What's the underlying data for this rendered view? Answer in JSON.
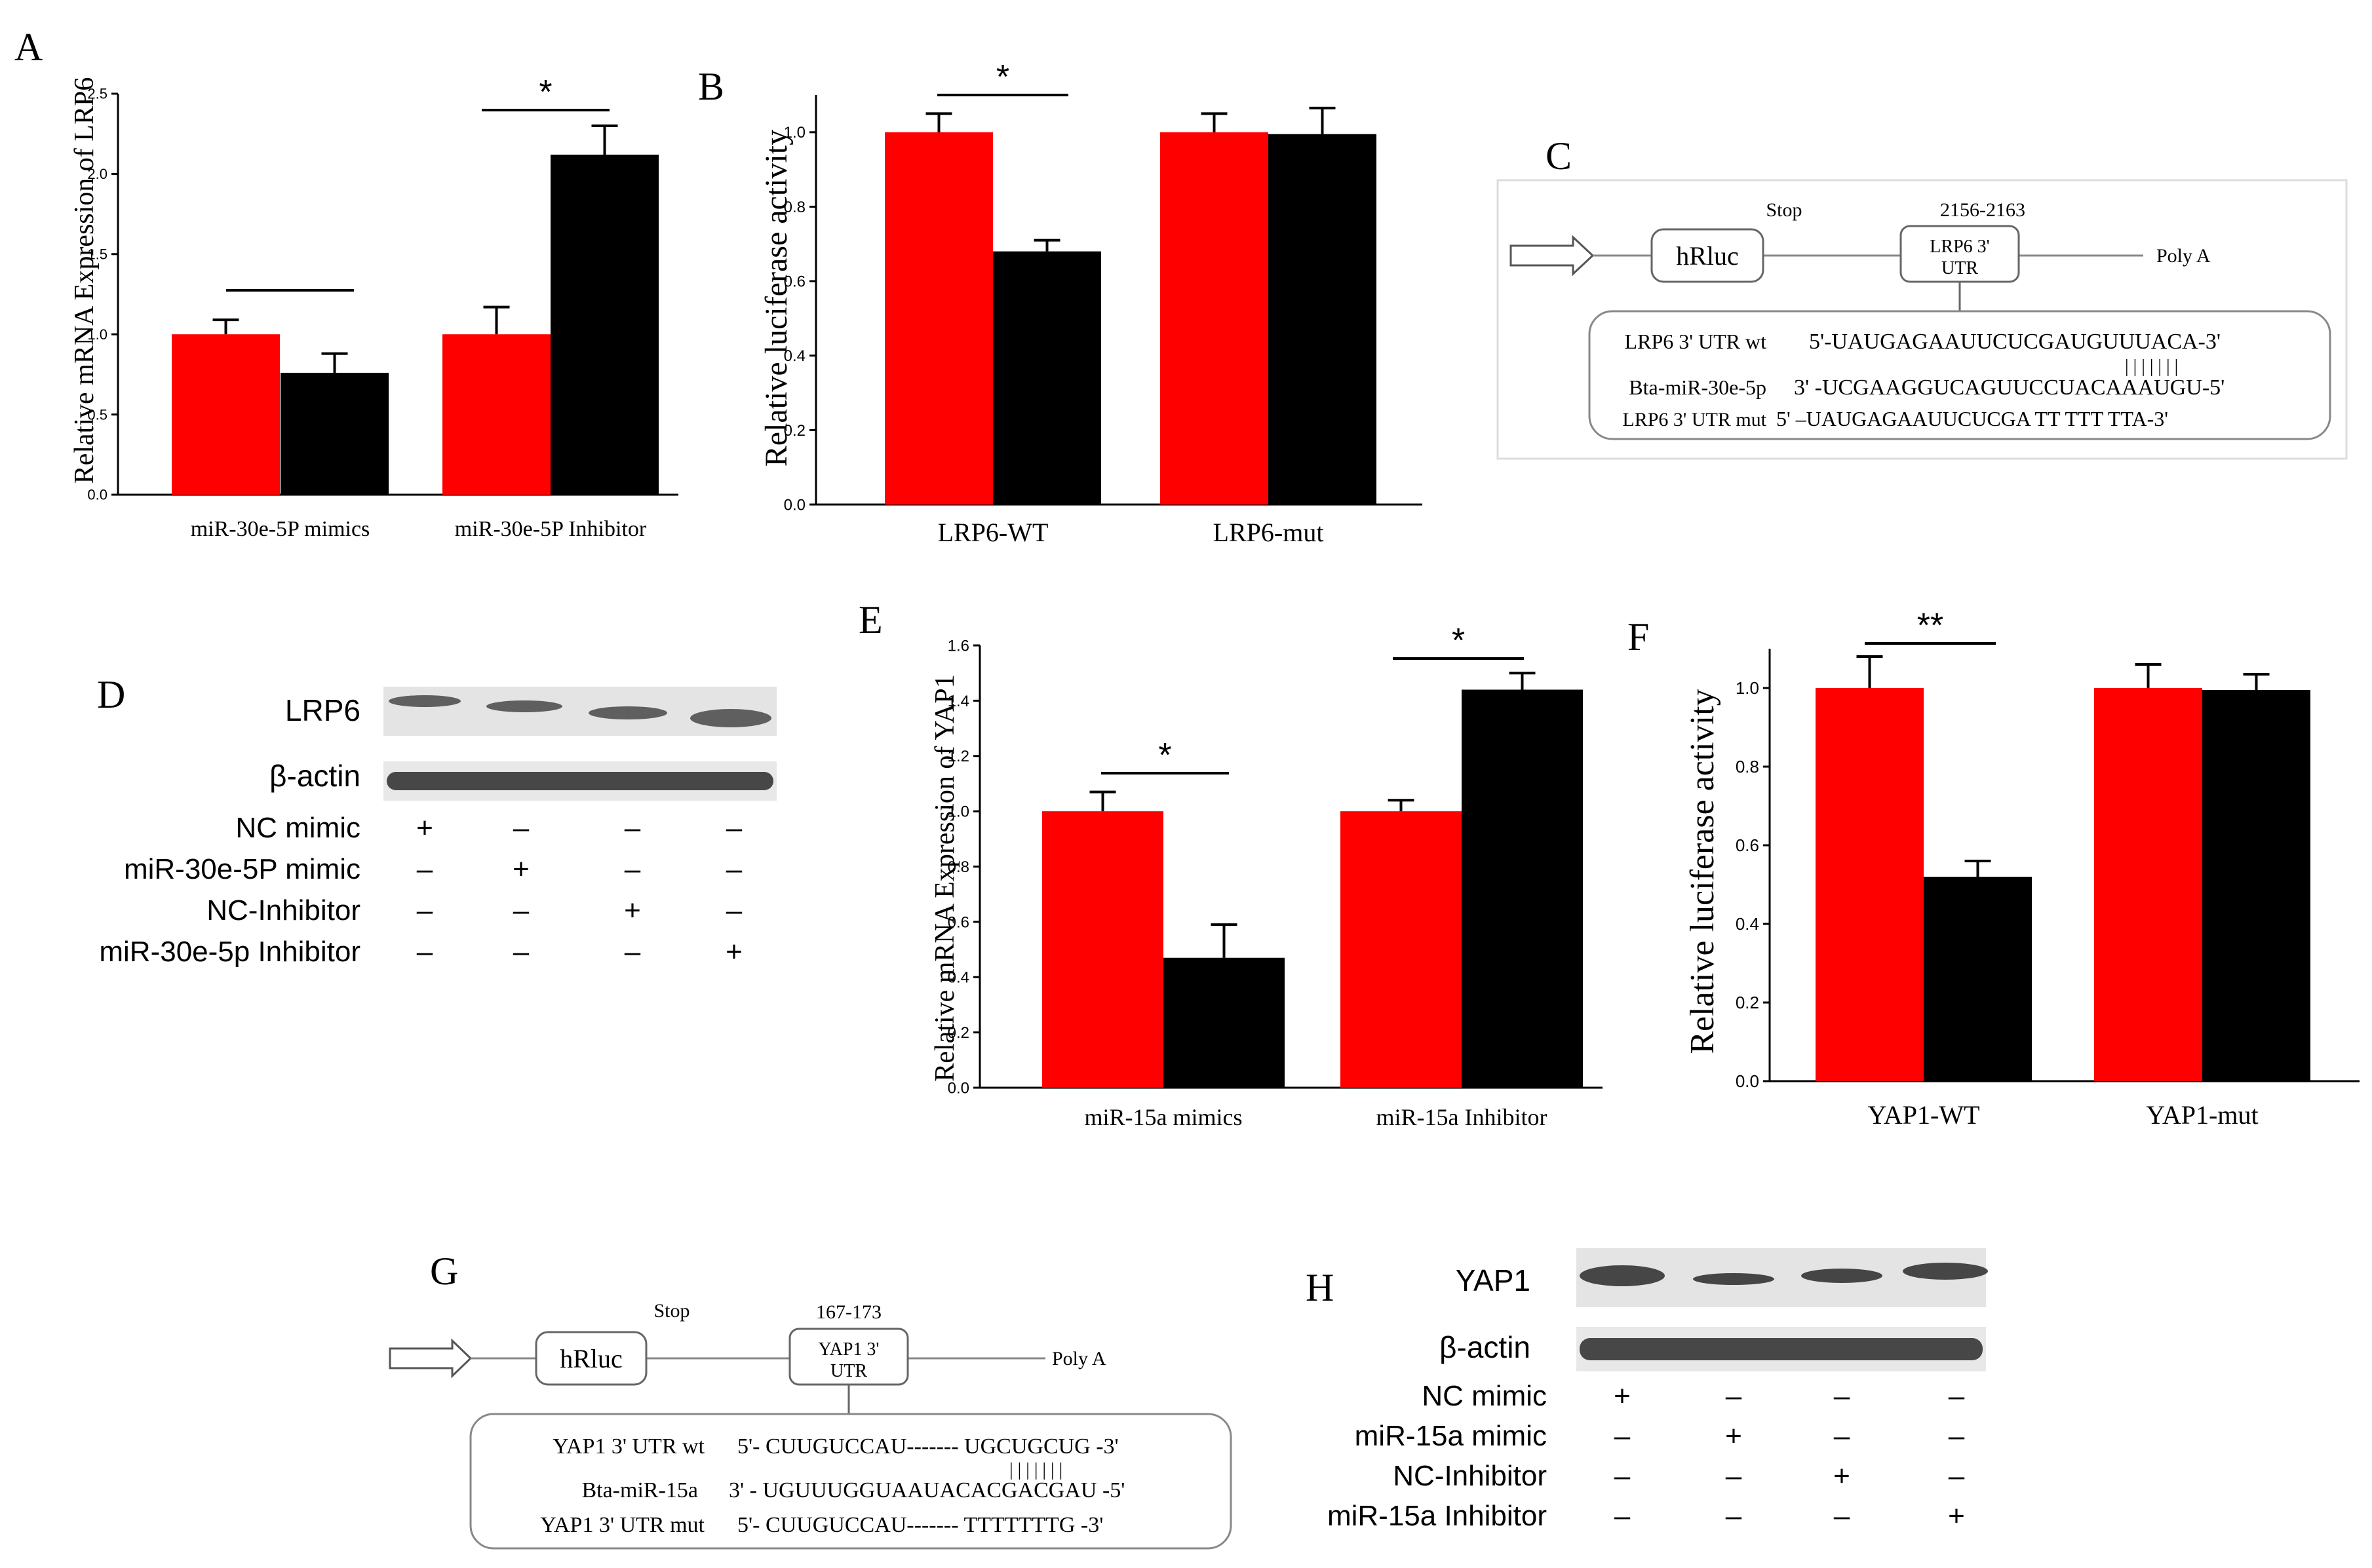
{
  "panels": {
    "A": {
      "letter": "A"
    },
    "B": {
      "letter": "B"
    },
    "C": {
      "letter": "C"
    },
    "D": {
      "letter": "D"
    },
    "E": {
      "letter": "E"
    },
    "F": {
      "letter": "F"
    },
    "G": {
      "letter": "G"
    },
    "H": {
      "letter": "H"
    }
  },
  "colors": {
    "red": "#ff0000",
    "black": "#000000",
    "frame": "#999999",
    "blot": "#e4e4e4",
    "band": "#333333"
  },
  "chart_data": [
    {
      "id": "A",
      "type": "bar",
      "title": "",
      "xlabel": "",
      "ylabel": "Relative mRNA Expression of LRP6",
      "categories": [
        "miR-30e-5P mimics",
        "miR-30e-5P Inhibitor"
      ],
      "series": [
        {
          "name": "control",
          "color": "#ff0000",
          "values": [
            1.0,
            1.0
          ],
          "errors": [
            0.09,
            0.17
          ]
        },
        {
          "name": "treatment",
          "color": "#000000",
          "values": [
            0.76,
            2.12
          ],
          "errors": [
            0.12,
            0.18
          ]
        }
      ],
      "ylim": [
        0,
        2.5
      ],
      "yticks": [
        "0.0",
        "0.5",
        "1.0",
        "1.5",
        "2.0",
        "2.5"
      ],
      "annotations": [
        {
          "category": 0,
          "label": ""
        },
        {
          "category": 1,
          "label": "*"
        }
      ]
    },
    {
      "id": "B",
      "type": "bar",
      "title": "",
      "xlabel": "",
      "ylabel": "Relative luciferase activity",
      "categories": [
        "LRP6-WT",
        "LRP6-mut"
      ],
      "series": [
        {
          "name": "control",
          "color": "#ff0000",
          "values": [
            1.0,
            1.0
          ],
          "errors": [
            0.05,
            0.05
          ]
        },
        {
          "name": "treatment",
          "color": "#000000",
          "values": [
            0.68,
            0.995
          ],
          "errors": [
            0.03,
            0.07
          ]
        }
      ],
      "ylim": [
        0,
        1.1
      ],
      "yticks": [
        "0.0",
        "0.2",
        "0.4",
        "0.6",
        "0.8",
        "1.0"
      ],
      "annotations": [
        {
          "category": 0,
          "label": "*"
        }
      ]
    },
    {
      "id": "E",
      "type": "bar",
      "title": "",
      "xlabel": "",
      "ylabel": "Relative mRNA Expression of YAP1",
      "categories": [
        "miR-15a mimics",
        "miR-15a Inhibitor"
      ],
      "series": [
        {
          "name": "control",
          "color": "#ff0000",
          "values": [
            1.0,
            1.0
          ],
          "errors": [
            0.07,
            0.04
          ]
        },
        {
          "name": "treatment",
          "color": "#000000",
          "values": [
            0.47,
            1.44
          ],
          "errors": [
            0.12,
            0.06
          ]
        }
      ],
      "ylim": [
        0,
        1.6
      ],
      "yticks": [
        "0.0",
        "0.2",
        "0.4",
        "0.6",
        "0.8",
        "1.0",
        "1.2",
        "1.4",
        "1.6"
      ],
      "annotations": [
        {
          "category": 0,
          "label": "*"
        },
        {
          "category": 1,
          "label": "*"
        }
      ]
    },
    {
      "id": "F",
      "type": "bar",
      "title": "",
      "xlabel": "",
      "ylabel": "Relative luciferase activity",
      "categories": [
        "YAP1-WT",
        "YAP1-mut"
      ],
      "series": [
        {
          "name": "control",
          "color": "#ff0000",
          "values": [
            1.0,
            1.0
          ],
          "errors": [
            0.08,
            0.06
          ]
        },
        {
          "name": "treatment",
          "color": "#000000",
          "values": [
            0.52,
            0.995
          ],
          "errors": [
            0.04,
            0.04
          ]
        }
      ],
      "ylim": [
        0,
        1.1
      ],
      "yticks": [
        "0.0",
        "0.2",
        "0.4",
        "0.6",
        "0.8",
        "1.0"
      ],
      "annotations": [
        {
          "category": 0,
          "label": "**"
        }
      ]
    }
  ],
  "construct_C": {
    "stop": "Stop",
    "position": "2156-2163",
    "hrluc": "hRluc",
    "utr_line1": "LRP6 3'",
    "utr_line2": "UTR",
    "polya": "Poly A",
    "rows": [
      {
        "label": "LRP6  3' UTR wt",
        "seq": "5'-UAUGAGAAUUCUCGAUGUUUACA-3'"
      },
      {
        "label": "",
        "seq": "| | | | | | |"
      },
      {
        "label": "Bta-miR-30e-5p",
        "seq": "3'  -UCGAAGGUCAGUUCCUACAAAUGU-5'"
      },
      {
        "label": "LRP6  3' UTR mut",
        "seq": "5' –UAUGAGAAUUCUCGA TT TTT TTA-3'"
      }
    ]
  },
  "construct_G": {
    "stop": "Stop",
    "position": "167-173",
    "hrluc": "hRluc",
    "utr_line1": "YAP1 3'",
    "utr_line2": "UTR",
    "polya": "Poly A",
    "rows": [
      {
        "label": "YAP1  3' UTR wt",
        "seq": "5'- CUUGUCCAU------- UGCUGCUG -3'"
      },
      {
        "label": "",
        "seq": "| | | | | | |"
      },
      {
        "label": "Bta-miR-15a",
        "seq": "3'  - UGUUUGGUAAUACACGACGAU -5'"
      },
      {
        "label": "YAP1  3' UTR mut",
        "seq": "5'- CUUGUCCAU-------  TTTTTTTG -3'"
      }
    ]
  },
  "blot_D": {
    "bands": [
      "LRP6",
      "β-actin"
    ],
    "conditions": [
      {
        "label": "NC mimic",
        "marks": [
          "+",
          "–",
          "–",
          "–"
        ]
      },
      {
        "label": "miR-30e-5P mimic",
        "marks": [
          "–",
          "+",
          "–",
          "–"
        ]
      },
      {
        "label": "NC-Inhibitor",
        "marks": [
          "–",
          "–",
          "+",
          "–"
        ]
      },
      {
        "label": "miR-30e-5p Inhibitor",
        "marks": [
          "–",
          "–",
          "–",
          "+"
        ]
      }
    ]
  },
  "blot_H": {
    "bands": [
      "YAP1",
      "β-actin"
    ],
    "conditions": [
      {
        "label": "NC mimic",
        "marks": [
          "+",
          "–",
          "–",
          "–"
        ]
      },
      {
        "label": "miR-15a mimic",
        "marks": [
          "–",
          "+",
          "–",
          "–"
        ]
      },
      {
        "label": "NC-Inhibitor",
        "marks": [
          "–",
          "–",
          "+",
          "–"
        ]
      },
      {
        "label": "miR-15a Inhibitor",
        "marks": [
          "–",
          "–",
          "–",
          "+"
        ]
      }
    ]
  }
}
